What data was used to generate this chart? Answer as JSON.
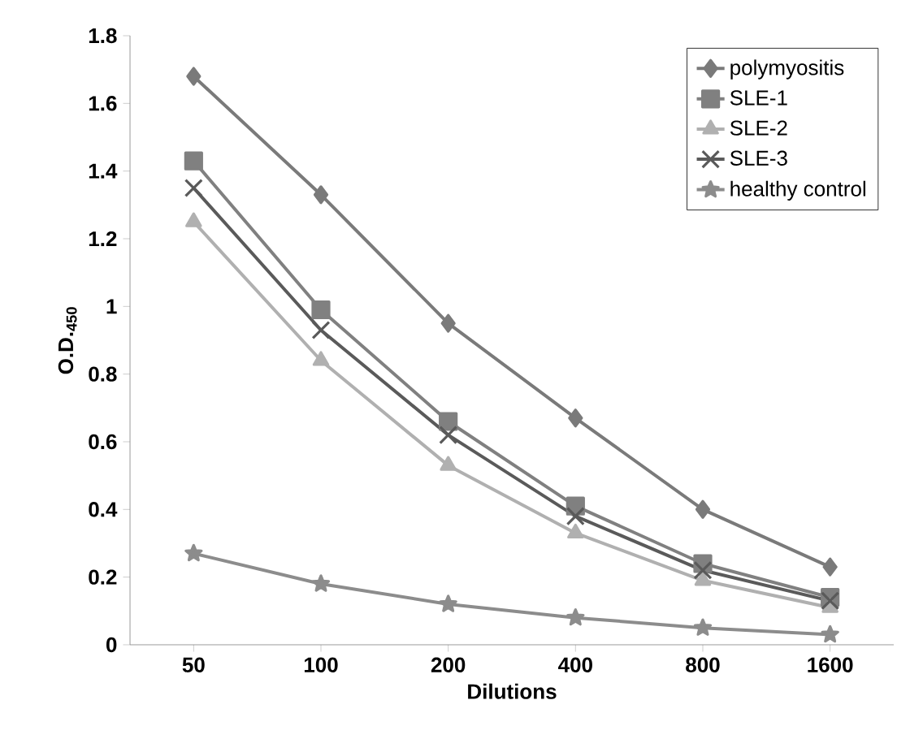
{
  "chart_data": {
    "type": "line",
    "xlabel": "Dilutions",
    "ylabel": "O.D.$_{450}$",
    "categories": [
      "50",
      "100",
      "200",
      "400",
      "800",
      "1600"
    ],
    "series": [
      {
        "name": "polymyositis",
        "color": "#7a7a7a",
        "marker": "diamond",
        "values": [
          1.68,
          1.33,
          0.95,
          0.67,
          0.4,
          0.23
        ]
      },
      {
        "name": "SLE-1",
        "color": "#808080",
        "marker": "square",
        "values": [
          1.43,
          0.99,
          0.66,
          0.41,
          0.24,
          0.14
        ]
      },
      {
        "name": "SLE-2",
        "color": "#b0b0b0",
        "marker": "triangle",
        "values": [
          1.25,
          0.84,
          0.53,
          0.33,
          0.19,
          0.11
        ]
      },
      {
        "name": "SLE-3",
        "color": "#5a5a5a",
        "marker": "cross",
        "values": [
          1.35,
          0.93,
          0.62,
          0.38,
          0.22,
          0.13
        ]
      },
      {
        "name": "healthy control",
        "color": "#8c8c8c",
        "marker": "star",
        "values": [
          0.27,
          0.18,
          0.12,
          0.08,
          0.05,
          0.03
        ]
      }
    ],
    "ylim": [
      0,
      1.8
    ],
    "yticks": [
      0,
      0.2,
      0.4,
      0.6,
      0.8,
      1,
      1.2,
      1.4,
      1.6,
      1.8
    ],
    "grid": false,
    "legend": "top right",
    "line_style": "solid"
  }
}
